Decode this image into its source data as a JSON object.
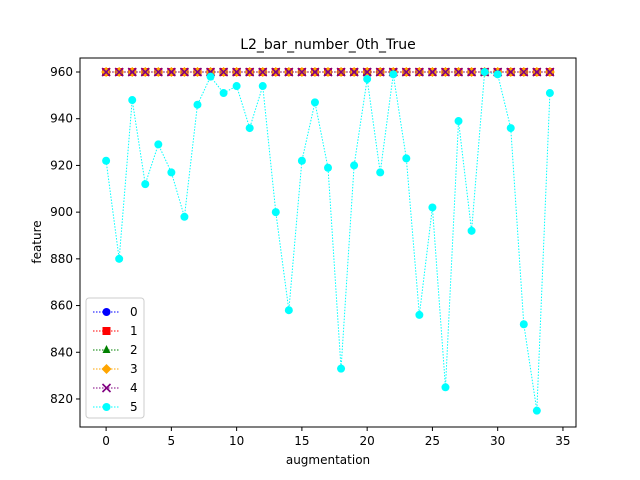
{
  "chart_data": {
    "type": "line",
    "title": "L2_bar_number_0th_True",
    "xlabel": "augmentation",
    "ylabel": "feature",
    "xlim": [
      -2,
      36
    ],
    "ylim": [
      808,
      966
    ],
    "xticks": [
      0,
      5,
      10,
      15,
      20,
      25,
      30,
      35
    ],
    "yticks": [
      820,
      840,
      860,
      880,
      900,
      920,
      940,
      960
    ],
    "grid": false,
    "legend_position": "lower-left",
    "x": [
      0,
      1,
      2,
      3,
      4,
      5,
      6,
      7,
      8,
      9,
      10,
      11,
      12,
      13,
      14,
      15,
      16,
      17,
      18,
      19,
      20,
      21,
      22,
      23,
      24,
      25,
      26,
      27,
      28,
      29,
      30,
      31,
      32,
      33,
      34
    ],
    "series": [
      {
        "name": "0",
        "color": "#0000ff",
        "marker": "circle",
        "values": [
          960,
          960,
          960,
          960,
          960,
          960,
          960,
          960,
          960,
          960,
          960,
          960,
          960,
          960,
          960,
          960,
          960,
          960,
          960,
          960,
          960,
          960,
          960,
          960,
          960,
          960,
          960,
          960,
          960,
          960,
          960,
          960,
          960,
          960,
          960
        ]
      },
      {
        "name": "1",
        "color": "#ff0000",
        "marker": "square",
        "values": [
          960,
          960,
          960,
          960,
          960,
          960,
          960,
          960,
          960,
          960,
          960,
          960,
          960,
          960,
          960,
          960,
          960,
          960,
          960,
          960,
          960,
          960,
          960,
          960,
          960,
          960,
          960,
          960,
          960,
          960,
          960,
          960,
          960,
          960,
          960
        ]
      },
      {
        "name": "2",
        "color": "#008000",
        "marker": "triangle",
        "values": [
          960,
          960,
          960,
          960,
          960,
          960,
          960,
          960,
          960,
          960,
          960,
          960,
          960,
          960,
          960,
          960,
          960,
          960,
          960,
          960,
          960,
          960,
          960,
          960,
          960,
          960,
          960,
          960,
          960,
          960,
          960,
          960,
          960,
          960,
          960
        ]
      },
      {
        "name": "3",
        "color": "#ffa500",
        "marker": "diamond",
        "values": [
          960,
          960,
          960,
          960,
          960,
          960,
          960,
          960,
          960,
          960,
          960,
          960,
          960,
          960,
          960,
          960,
          960,
          960,
          960,
          960,
          960,
          960,
          960,
          960,
          960,
          960,
          960,
          960,
          960,
          960,
          960,
          960,
          960,
          960,
          960
        ]
      },
      {
        "name": "4",
        "color": "#800080",
        "marker": "x",
        "values": [
          960,
          960,
          960,
          960,
          960,
          960,
          960,
          960,
          960,
          960,
          960,
          960,
          960,
          960,
          960,
          960,
          960,
          960,
          960,
          960,
          960,
          960,
          960,
          960,
          960,
          960,
          960,
          960,
          960,
          960,
          960,
          960,
          960,
          960,
          960
        ]
      },
      {
        "name": "5",
        "color": "#00ffff",
        "marker": "circle",
        "values": [
          922,
          880,
          948,
          912,
          929,
          917,
          898,
          946,
          958,
          951,
          954,
          936,
          954,
          900,
          858,
          922,
          947,
          919,
          833,
          920,
          957,
          917,
          959,
          923,
          856,
          902,
          825,
          939,
          892,
          960,
          959,
          936,
          852,
          815,
          951
        ]
      }
    ]
  }
}
